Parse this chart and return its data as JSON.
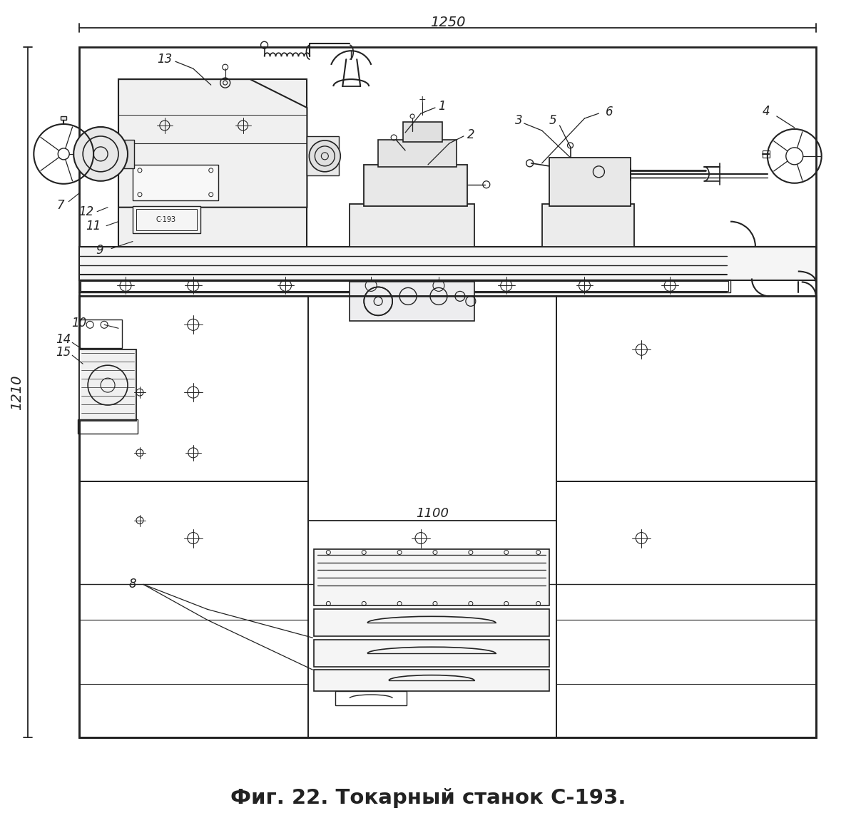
{
  "title": "Фиг. 22. Токарный станок С-193.",
  "bg_color": "#ffffff",
  "line_color": "#222222",
  "title_fontsize": 21,
  "fig_width": 12.0,
  "fig_height": 11.61,
  "dim_1250": "1250",
  "dim_1210": "1210",
  "dim_1100": "1100"
}
